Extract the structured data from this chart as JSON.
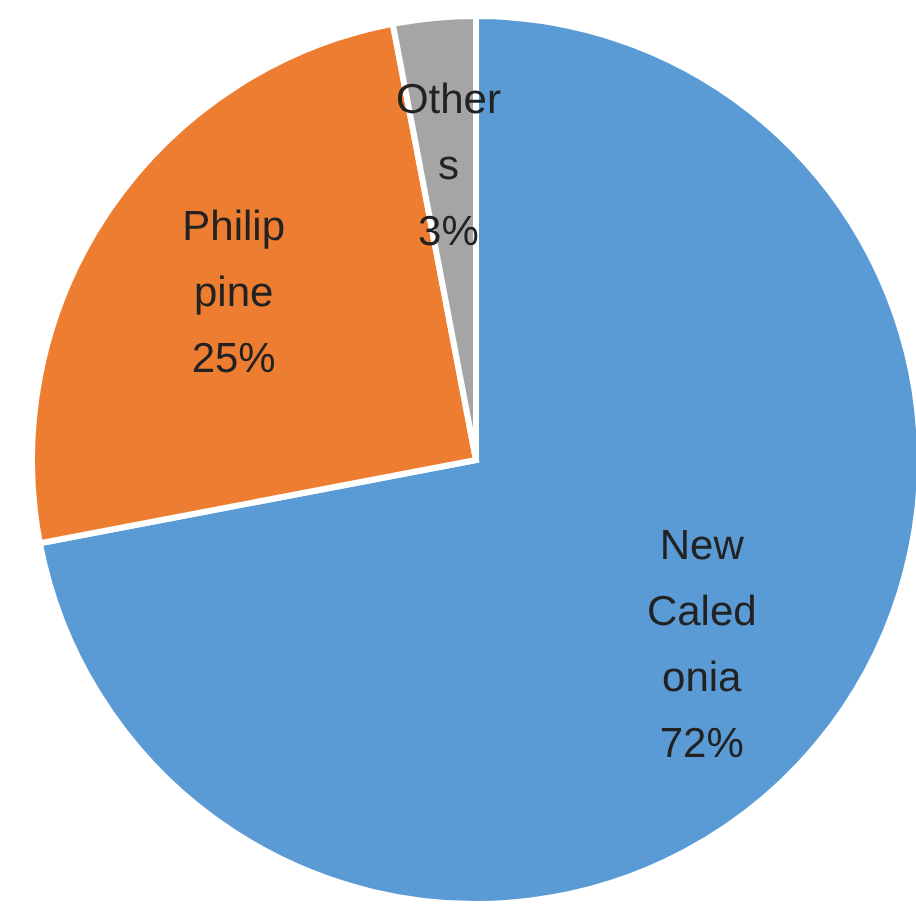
{
  "chart_data": {
    "type": "pie",
    "categories": [
      "New Caledonia",
      "Philippine",
      "Others"
    ],
    "values": [
      72,
      25,
      3
    ],
    "colors": [
      "#5b9bd5",
      "#ed7d31",
      "#a5a5a5"
    ],
    "value_labels": [
      "72%",
      "25%",
      "3%"
    ]
  }
}
